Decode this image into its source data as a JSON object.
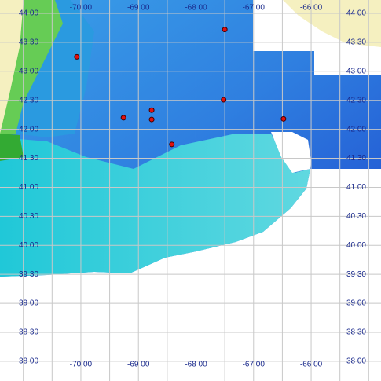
{
  "chart_data": {
    "type": "scatter",
    "x": [
      -70.07,
      -67.5,
      -68.77,
      -68.77,
      -69.26,
      -67.52,
      -66.48,
      -68.42
    ],
    "values": [
      43.25,
      43.72,
      42.33,
      42.17,
      42.2,
      42.51,
      42.18,
      41.74
    ],
    "color": "#e01010",
    "xlim": [
      -71.405,
      -64.786
    ],
    "ylim": [
      37.66,
      44.23
    ],
    "xticks": [
      {
        "value": -70,
        "label": "-70 00"
      },
      {
        "value": -69,
        "label": "-69 00"
      },
      {
        "value": -68,
        "label": "-68 00"
      },
      {
        "value": -67,
        "label": "-67 00"
      },
      {
        "value": -66,
        "label": "-66 00"
      }
    ],
    "xminorticks": [
      -71,
      -70.5,
      -69.5,
      -68.5,
      -67.5,
      -66.5,
      -65.5,
      -65
    ],
    "yticks": [
      {
        "value": 44,
        "label": "44 00"
      },
      {
        "value": 43.5,
        "label": "43 30"
      },
      {
        "value": 43,
        "label": "43 00"
      },
      {
        "value": 42.5,
        "label": "42 30"
      },
      {
        "value": 42,
        "label": "42 00"
      },
      {
        "value": 41.5,
        "label": "41 30"
      },
      {
        "value": 41,
        "label": "41 00"
      },
      {
        "value": 40.5,
        "label": "40 30"
      },
      {
        "value": 40,
        "label": "40 00"
      },
      {
        "value": 39.5,
        "label": "39 30"
      },
      {
        "value": 39,
        "label": "39 00"
      },
      {
        "value": 38.5,
        "label": "38 30"
      },
      {
        "value": 38,
        "label": "38 00"
      }
    ],
    "grid": true
  }
}
